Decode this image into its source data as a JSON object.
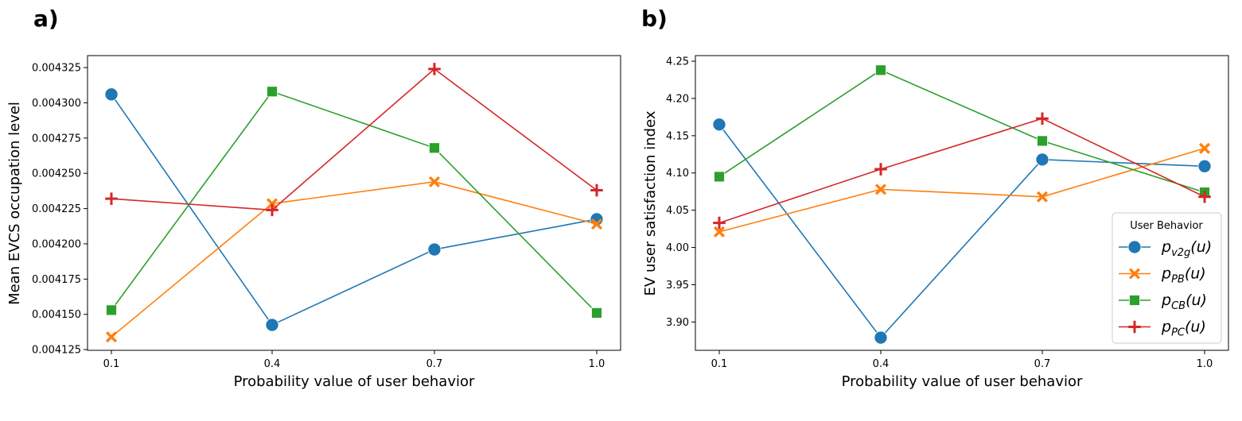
{
  "legend": {
    "title": "User Behavior",
    "entries": [
      {
        "base": "p",
        "sub": "v2g",
        "suffix": "(u)",
        "color": "#1f77b4",
        "marker": "circle"
      },
      {
        "base": "p",
        "sub": "PB",
        "suffix": "(u)",
        "color": "#ff7f0e",
        "marker": "x"
      },
      {
        "base": "p",
        "sub": "CB",
        "suffix": "(u)",
        "color": "#2ca02c",
        "marker": "square"
      },
      {
        "base": "p",
        "sub": "PC",
        "suffix": "(u)",
        "color": "#d62728",
        "marker": "plus"
      }
    ]
  },
  "chart_data": [
    {
      "panel_label": "a)",
      "type": "line",
      "xlabel": "Probability value of user behavior",
      "ylabel": "Mean EVCS occupation level",
      "x": [
        "0.1",
        "0.4",
        "0.7",
        "1.0"
      ],
      "ylim": [
        0.0041245,
        0.0043335
      ],
      "yticks": [
        0.004125,
        0.00415,
        0.004175,
        0.0042,
        0.004225,
        0.00425,
        0.004275,
        0.0043,
        0.004325
      ],
      "ytick_labels": [
        "0.004125",
        "0.004150",
        "0.004175",
        "0.004200",
        "0.004225",
        "0.004250",
        "0.004275",
        "0.004300",
        "0.004325"
      ],
      "series": [
        {
          "values": [
            0.004306,
            0.0041425,
            0.004196,
            0.0042175
          ]
        },
        {
          "values": [
            0.004134,
            0.0042285,
            0.004244,
            0.004214
          ]
        },
        {
          "values": [
            0.004153,
            0.004308,
            0.004268,
            0.004151
          ]
        },
        {
          "values": [
            0.004232,
            0.004224,
            0.004324,
            0.004238
          ]
        }
      ]
    },
    {
      "panel_label": "b)",
      "type": "line",
      "xlabel": "Probability value of user behavior",
      "ylabel": "EV user satisfaction index",
      "x": [
        "0.1",
        "0.4",
        "0.7",
        "1.0"
      ],
      "ylim": [
        3.862,
        4.2575
      ],
      "yticks": [
        3.9,
        3.95,
        4.0,
        4.05,
        4.1,
        4.15,
        4.2,
        4.25
      ],
      "ytick_labels": [
        "3.90",
        "3.95",
        "4.00",
        "4.05",
        "4.10",
        "4.15",
        "4.20",
        "4.25"
      ],
      "series": [
        {
          "values": [
            4.165,
            3.879,
            4.118,
            4.109
          ]
        },
        {
          "values": [
            4.021,
            4.078,
            4.068,
            4.133
          ]
        },
        {
          "values": [
            4.095,
            4.238,
            4.143,
            4.074
          ]
        },
        {
          "values": [
            4.033,
            4.105,
            4.173,
            4.068
          ]
        }
      ]
    }
  ]
}
